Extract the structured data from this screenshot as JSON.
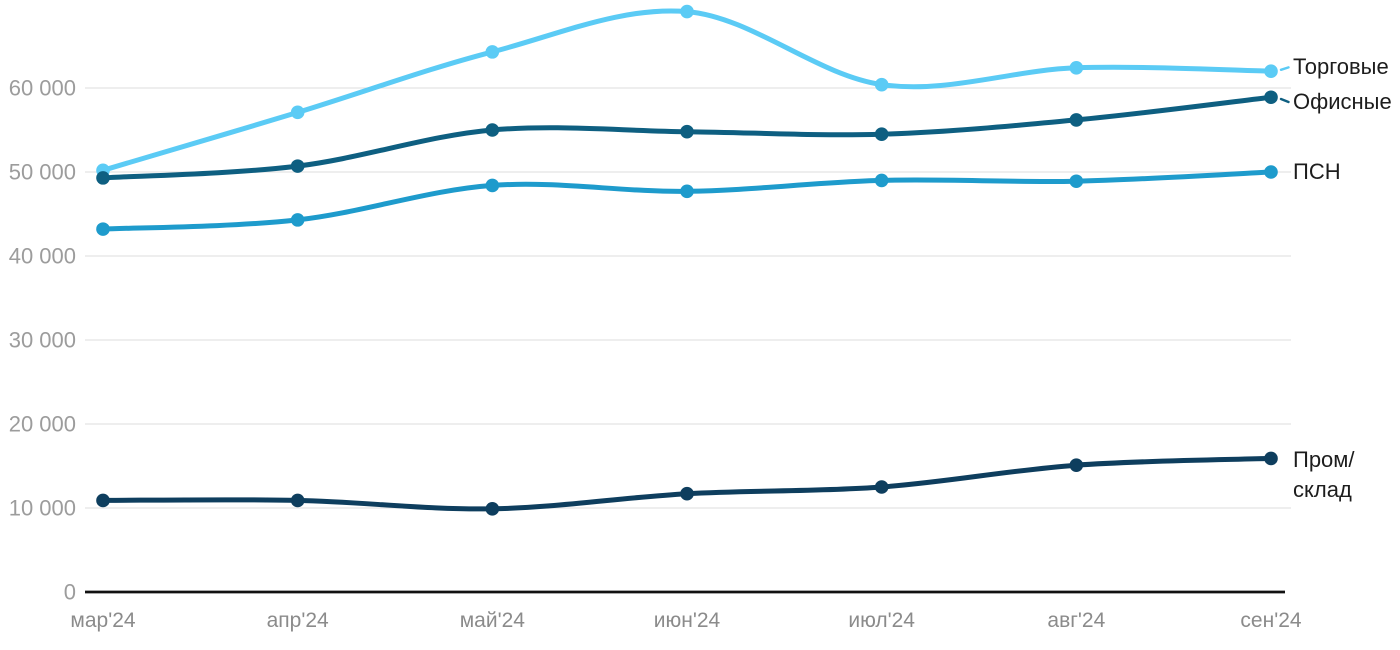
{
  "chart_data": {
    "type": "line",
    "title": "",
    "xlabel": "",
    "ylabel": "",
    "x_categories": [
      "мар'24",
      "апр'24",
      "май'24",
      "июн'24",
      "июл'24",
      "авг'24",
      "сен'24"
    ],
    "y_tick_values": [
      0,
      10000,
      20000,
      30000,
      40000,
      50000,
      60000
    ],
    "y_tick_labels": [
      "0",
      "10 000",
      "20 000",
      "30 000",
      "40 000",
      "50 000",
      "60 000"
    ],
    "ylim": [
      0,
      70000
    ],
    "grid": "horizontal-gridlines",
    "legend_position": "direct-labels-right",
    "series": [
      {
        "name": "Торговые",
        "label_lines": [
          "Торговые"
        ],
        "color": "#5BCBF5",
        "values": [
          50200,
          57100,
          64300,
          69100,
          60400,
          62400,
          62000
        ],
        "label_dy": -4
      },
      {
        "name": "Офисные",
        "label_lines": [
          "Офисные"
        ],
        "color": "#0E5F81",
        "values": [
          49300,
          50700,
          55000,
          54800,
          54500,
          56200,
          58900
        ],
        "label_dy": 5
      },
      {
        "name": "ПСН",
        "label_lines": [
          "ПСН"
        ],
        "color": "#1E9BCC",
        "values": [
          43200,
          44300,
          48400,
          47700,
          49000,
          48900,
          50000
        ],
        "label_dy": 0
      },
      {
        "name": "Пром/склад",
        "label_lines": [
          "Пром/",
          "склад"
        ],
        "color": "#0E3E5E",
        "values": [
          10900,
          10900,
          9900,
          11700,
          12500,
          15100,
          15900
        ],
        "label_dy": 2
      }
    ],
    "colors": {
      "gridline": "#e3e3e3",
      "axis_line": "#111111",
      "y_tick_label": "#9c9c9c",
      "x_tick_label": "#8b8b8b",
      "series_label": "#1d1d1d"
    }
  }
}
